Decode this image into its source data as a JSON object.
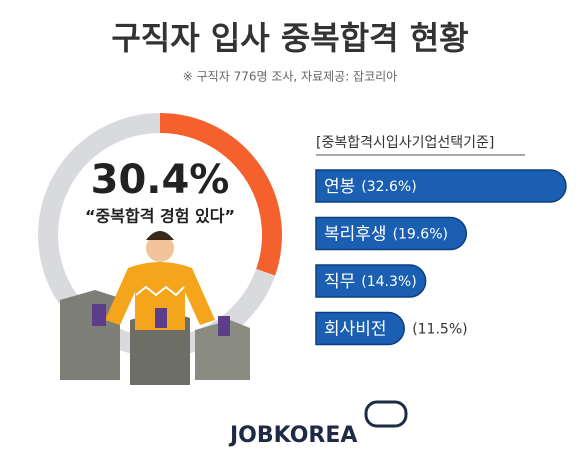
{
  "title": "구직자 입사 중복합격 현황",
  "subtitle": "※ 구직자 776명 조사, 자료제공: 잡코리아",
  "footer": "JOBKOREA",
  "chart_data": [
    {
      "type": "donut",
      "values": [
        30.4,
        69.6
      ],
      "value_labels": [
        "30.4%",
        null
      ],
      "colors": [
        "#f4612c",
        "#d9dade"
      ],
      "annotation": "“중복합격 경험 있다”"
    },
    {
      "type": "bar",
      "title": "[중복합격시입사기업선택기준]",
      "categories": [
        "연봉",
        "복리후생",
        "직무",
        "회사비전"
      ],
      "values": [
        32.6,
        19.6,
        14.3,
        11.5
      ],
      "value_labels": [
        "(32.6%)",
        "(19.6%)",
        "(14.3%)",
        "(11.5%)"
      ],
      "color": "#1b5fb3"
    }
  ]
}
